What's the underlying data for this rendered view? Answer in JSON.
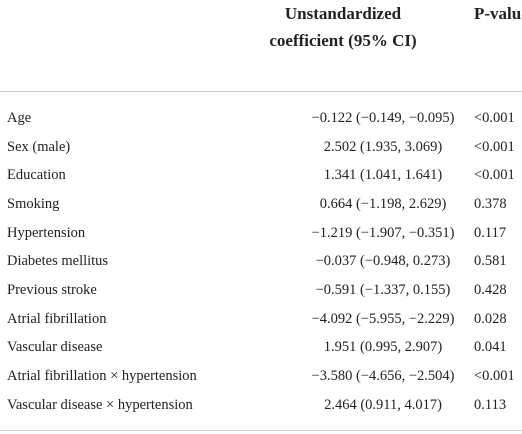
{
  "table": {
    "header": [
      "Unstandardized coefficient (95% CI)",
      "P-value"
    ],
    "rows": [
      [
        "Age",
        "−0.122 (−0.149, −0.095)",
        "<0.001"
      ],
      [
        "Sex (male)",
        "2.502 (1.935, 3.069)",
        "<0.001"
      ],
      [
        "Education",
        "1.341 (1.041, 1.641)",
        "<0.001"
      ],
      [
        "Smoking",
        "0.664 (−1.198, 2.629)",
        "0.378"
      ],
      [
        "Hypertension",
        "−1.219 (−1.907, −0.351)",
        "0.117"
      ],
      [
        "Diabetes mellitus",
        "−0.037 (−0.948, 0.273)",
        "0.581"
      ],
      [
        "Previous stroke",
        "−0.591 (−1.337, 0.155)",
        "0.428"
      ],
      [
        "Atrial fibrillation",
        "−4.092 (−5.955, −2.229)",
        "0.028"
      ],
      [
        "Vascular disease",
        "1.951 (0.995, 2.907)",
        "0.041"
      ],
      [
        "Atrial fibrillation × hypertension",
        "−3.580 (−4.656, −2.504)",
        "<0.001"
      ],
      [
        "Vascular disease × hypertension",
        "2.464 (0.911, 4.017)",
        "0.113"
      ]
    ]
  }
}
